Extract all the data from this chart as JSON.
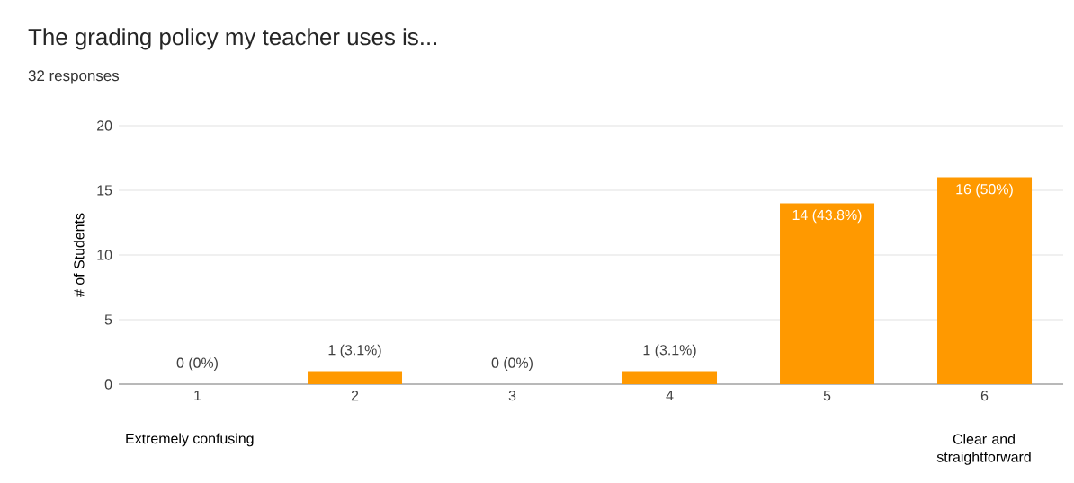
{
  "chart_data": {
    "type": "bar",
    "title": "The grading policy my teacher uses is...",
    "subtitle": "32 responses",
    "ylabel": "# of Students",
    "categories": [
      "1",
      "2",
      "3",
      "4",
      "5",
      "6"
    ],
    "values": [
      0,
      1,
      0,
      1,
      14,
      16
    ],
    "value_labels": [
      "0 (0%)",
      "1 (3.1%)",
      "0 (0%)",
      "1 (3.1%)",
      "14 (43.8%)",
      "16 (50%)"
    ],
    "color": "#ff9900",
    "ylim": [
      0,
      20
    ],
    "yticks": [
      0,
      5,
      10,
      15,
      20
    ],
    "grid": "y",
    "annotations": [
      "Extremely confusing",
      "Clear and straightforward"
    ]
  }
}
